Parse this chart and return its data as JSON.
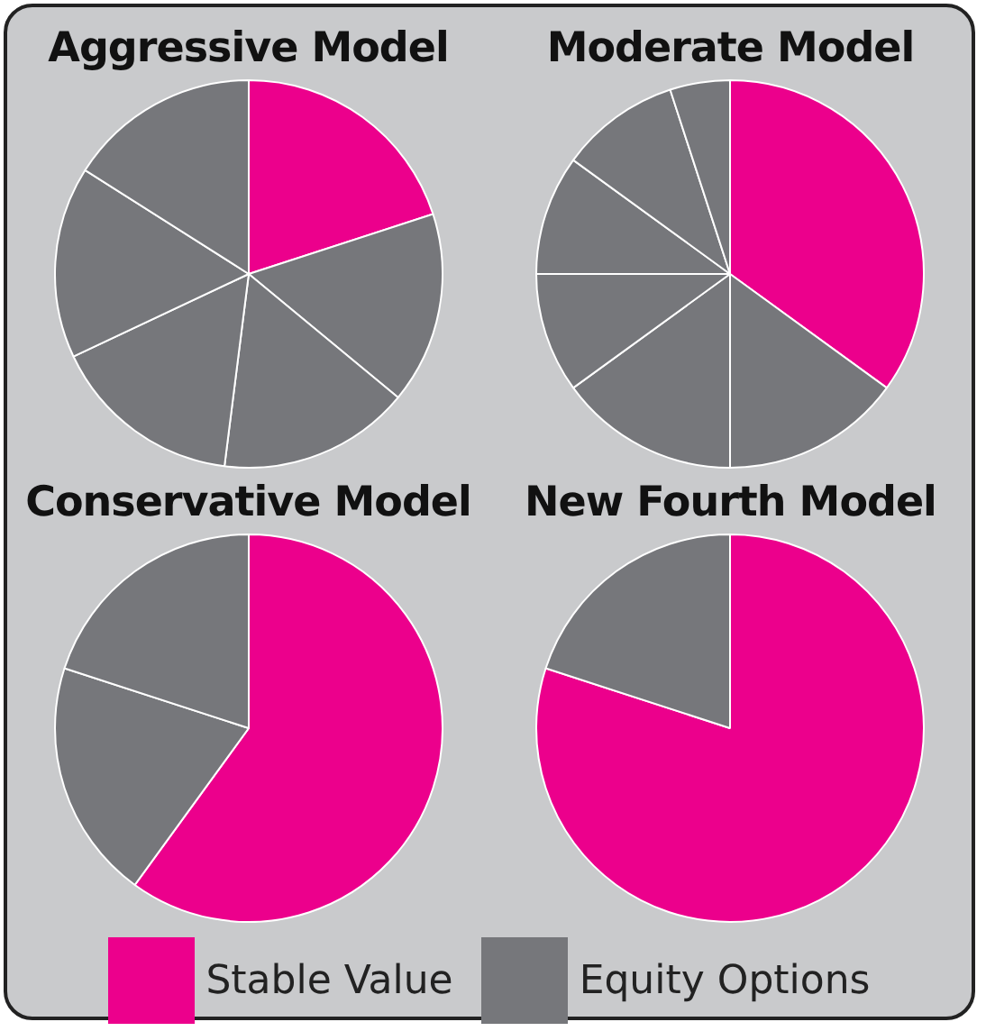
{
  "chart_data": [
    {
      "type": "pie",
      "title": "Aggressive Model",
      "categories": [
        "Stable Value",
        "Equity Options",
        null,
        null,
        null,
        null
      ],
      "values": [
        20,
        16,
        16,
        16,
        16,
        16
      ],
      "colors": [
        "#ec008c",
        "#76777b",
        "#76777b",
        "#76777b",
        "#76777b",
        "#76777b"
      ],
      "legend": "bottom"
    },
    {
      "type": "pie",
      "title": "Moderate Model",
      "categories": [
        null,
        null,
        null,
        null,
        null,
        null,
        null
      ],
      "values": [
        35,
        15,
        15,
        10,
        10,
        10,
        5
      ],
      "colors": [
        "#ec008c",
        "#76777b",
        "#76777b",
        "#76777b",
        "#76777b",
        "#76777b",
        "#76777b"
      ]
    },
    {
      "type": "pie",
      "title": "Conservative Model",
      "categories": [
        null,
        null,
        null
      ],
      "values": [
        60,
        20,
        20
      ],
      "colors": [
        "#ec008c",
        "#76777b",
        "#76777b"
      ]
    },
    {
      "type": "pie",
      "title": "New Fourth Model",
      "categories": [
        null,
        null
      ],
      "values": [
        80,
        20
      ],
      "colors": [
        "#ec008c",
        "#76777b"
      ]
    }
  ]
}
